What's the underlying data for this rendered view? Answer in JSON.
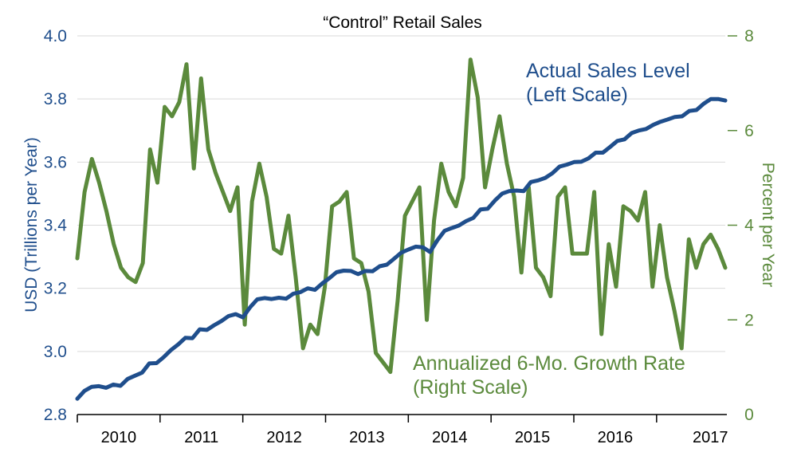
{
  "chart_data": {
    "type": "line",
    "title": "“Control” Retail Sales",
    "ylabel_left": "USD (Trillions per Year)",
    "ylabel_right": "Percent per Year",
    "x_start": 2009.5,
    "x_end": 2017.33,
    "x_labels": [
      {
        "label": "2010",
        "center": 2010.0
      },
      {
        "label": "2011",
        "center": 2011.0
      },
      {
        "label": "2012",
        "center": 2012.0
      },
      {
        "label": "2013",
        "center": 2013.0
      },
      {
        "label": "2014",
        "center": 2014.0
      },
      {
        "label": "2015",
        "center": 2015.0
      },
      {
        "label": "2016",
        "center": 2016.0
      },
      {
        "label": "2017",
        "center": 2017.15
      }
    ],
    "x_ticks": [
      2009.5,
      2010.5,
      2011.5,
      2012.5,
      2013.5,
      2014.5,
      2015.5,
      2016.5
    ],
    "ylim_left": [
      2.8,
      4.0
    ],
    "yticks_left": [
      "2.8",
      "3.0",
      "3.2",
      "3.4",
      "3.6",
      "3.8",
      "4.0"
    ],
    "ylim_right": [
      0,
      8
    ],
    "yticks_right": [
      "0",
      "2",
      "4",
      "6",
      "8"
    ],
    "series": [
      {
        "name": "Actual Sales Level",
        "axis": "left",
        "color": "#1f4e8c",
        "annotation": [
          "Actual Sales Level",
          "(Left Scale)"
        ],
        "values": [
          2.85,
          2.875,
          2.888,
          2.89,
          2.885,
          2.895,
          2.891,
          2.913,
          2.923,
          2.933,
          2.962,
          2.963,
          2.982,
          3.004,
          3.022,
          3.043,
          3.042,
          3.07,
          3.068,
          3.083,
          3.096,
          3.112,
          3.118,
          3.108,
          3.14,
          3.165,
          3.169,
          3.166,
          3.17,
          3.167,
          3.183,
          3.188,
          3.2,
          3.195,
          3.215,
          3.232,
          3.251,
          3.256,
          3.255,
          3.245,
          3.255,
          3.254,
          3.27,
          3.275,
          3.294,
          3.313,
          3.323,
          3.332,
          3.33,
          3.315,
          3.352,
          3.382,
          3.391,
          3.399,
          3.413,
          3.423,
          3.45,
          3.452,
          3.478,
          3.5,
          3.508,
          3.51,
          3.508,
          3.537,
          3.542,
          3.55,
          3.565,
          3.586,
          3.592,
          3.6,
          3.601,
          3.612,
          3.63,
          3.63,
          3.648,
          3.667,
          3.672,
          3.692,
          3.7,
          3.705,
          3.718,
          3.728,
          3.735,
          3.743,
          3.745,
          3.762,
          3.765,
          3.785,
          3.8,
          3.8,
          3.795
        ]
      },
      {
        "name": "Annualized 6-Mo. Growth Rate",
        "axis": "right",
        "color": "#5b8a3c",
        "annotation": [
          "Annualized 6-Mo. Growth Rate",
          "(Right Scale)"
        ],
        "values": [
          3.3,
          4.7,
          5.4,
          4.9,
          4.3,
          3.6,
          3.1,
          2.9,
          2.8,
          3.2,
          5.6,
          4.9,
          6.5,
          6.3,
          6.6,
          7.4,
          5.2,
          7.1,
          5.6,
          5.1,
          4.7,
          4.3,
          4.8,
          1.9,
          4.5,
          5.3,
          4.6,
          3.5,
          3.4,
          4.2,
          2.9,
          1.4,
          1.9,
          1.7,
          2.7,
          4.4,
          4.5,
          4.7,
          3.3,
          3.2,
          2.6,
          1.3,
          1.1,
          0.9,
          2.4,
          4.2,
          4.5,
          4.8,
          2.0,
          4.1,
          5.3,
          4.7,
          4.4,
          5.0,
          7.5,
          6.7,
          4.8,
          5.6,
          6.3,
          5.3,
          4.6,
          3.0,
          4.8,
          3.1,
          2.9,
          2.5,
          4.6,
          4.8,
          3.4,
          3.4,
          3.4,
          4.7,
          1.7,
          3.6,
          2.7,
          4.4,
          4.3,
          4.1,
          4.7,
          2.7,
          4.0,
          2.9,
          2.2,
          1.4,
          3.7,
          3.1,
          3.6,
          3.8,
          3.5,
          3.1
        ]
      }
    ]
  }
}
